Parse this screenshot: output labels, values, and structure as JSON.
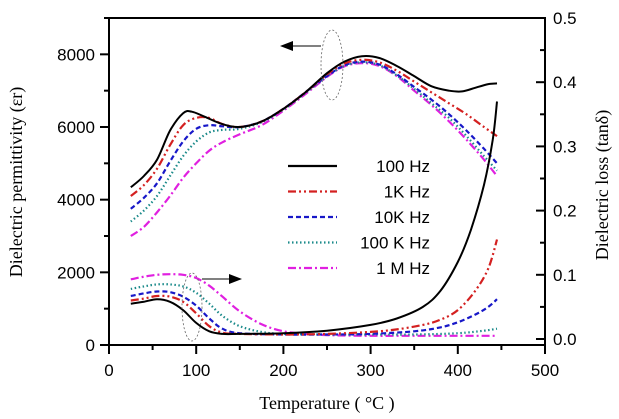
{
  "chart_data": {
    "type": "line",
    "title": "",
    "xlabel": "Temperature ( °C )",
    "ylabel_left": "Dielectric permittivity (εr)",
    "ylabel_right": "Dielectric loss (tanδ)",
    "xlim": [
      0,
      500
    ],
    "ylim_left": [
      0,
      9000
    ],
    "ylim_right": [
      0,
      0.5
    ],
    "x_ticks": [
      0,
      100,
      200,
      300,
      400,
      500
    ],
    "y_left_ticks": [
      0,
      2000,
      4000,
      6000,
      8000
    ],
    "y_right_ticks": [
      0.0,
      0.1,
      0.2,
      0.3,
      0.4,
      0.5
    ],
    "x_tick_labels": [
      "0",
      "100",
      "200",
      "300",
      "400",
      "500"
    ],
    "y_left_tick_labels": [
      "0",
      "2000",
      "4000",
      "6000",
      "8000"
    ],
    "y_right_tick_labels": [
      "0.0",
      "0.1",
      "0.2",
      "0.3",
      "0.4",
      "0.5"
    ],
    "grid": false,
    "legend_position": "center-right",
    "annotations": [
      {
        "type": "ellipse-arrow",
        "target_axis": "left",
        "direction": "left",
        "near_x": 255
      },
      {
        "type": "ellipse-arrow",
        "target_axis": "right",
        "direction": "right",
        "near_x": 95
      }
    ],
    "series": [
      {
        "name": "100 Hz",
        "color": "#000000",
        "style": "solid",
        "permittivity": {
          "x": [
            25,
            40,
            55,
            70,
            85,
            95,
            110,
            130,
            150,
            175,
            200,
            225,
            250,
            270,
            290,
            310,
            330,
            350,
            370,
            390,
            405,
            420,
            435,
            445
          ],
          "y": [
            4340,
            4650,
            5100,
            5900,
            6380,
            6420,
            6280,
            6080,
            6000,
            6150,
            6500,
            6950,
            7480,
            7800,
            7950,
            7900,
            7680,
            7400,
            7120,
            7000,
            6980,
            7080,
            7180,
            7200
          ]
        },
        "loss": {
          "x": [
            25,
            40,
            55,
            70,
            85,
            100,
            115,
            130,
            150,
            200,
            250,
            300,
            330,
            360,
            380,
            400,
            415,
            430,
            440,
            445
          ],
          "y": [
            0.055,
            0.058,
            0.062,
            0.058,
            0.045,
            0.025,
            0.012,
            0.008,
            0.008,
            0.009,
            0.013,
            0.022,
            0.032,
            0.05,
            0.075,
            0.12,
            0.17,
            0.24,
            0.31,
            0.37
          ]
        }
      },
      {
        "name": "1K Hz",
        "color": "#d42020",
        "style": "dashdotdot",
        "permittivity": {
          "x": [
            25,
            40,
            55,
            70,
            85,
            100,
            115,
            130,
            150,
            175,
            200,
            225,
            250,
            270,
            290,
            310,
            330,
            350,
            370,
            390,
            410,
            430,
            445
          ],
          "y": [
            4100,
            4400,
            4850,
            5500,
            6050,
            6250,
            6250,
            6080,
            6000,
            6150,
            6500,
            6950,
            7450,
            7750,
            7850,
            7780,
            7550,
            7250,
            6950,
            6650,
            6350,
            6000,
            5750
          ]
        },
        "loss": {
          "x": [
            25,
            40,
            55,
            70,
            85,
            100,
            115,
            130,
            150,
            200,
            250,
            300,
            330,
            360,
            380,
            400,
            420,
            435,
            445
          ],
          "y": [
            0.06,
            0.063,
            0.067,
            0.066,
            0.058,
            0.04,
            0.02,
            0.01,
            0.008,
            0.007,
            0.008,
            0.011,
            0.015,
            0.022,
            0.03,
            0.045,
            0.075,
            0.11,
            0.155
          ]
        }
      },
      {
        "name": "10K Hz",
        "color": "#1818c8",
        "style": "dashed",
        "permittivity": {
          "x": [
            25,
            40,
            55,
            70,
            85,
            100,
            115,
            130,
            150,
            175,
            200,
            225,
            250,
            270,
            290,
            310,
            330,
            350,
            370,
            390,
            410,
            430,
            445
          ],
          "y": [
            3750,
            4050,
            4450,
            5050,
            5600,
            5950,
            6050,
            6020,
            6000,
            6150,
            6500,
            6950,
            7400,
            7700,
            7800,
            7720,
            7450,
            7100,
            6750,
            6350,
            5900,
            5400,
            5000
          ]
        },
        "loss": {
          "x": [
            25,
            40,
            55,
            70,
            85,
            100,
            115,
            130,
            150,
            200,
            250,
            300,
            350,
            380,
            400,
            420,
            435,
            445
          ],
          "y": [
            0.067,
            0.071,
            0.074,
            0.073,
            0.066,
            0.052,
            0.032,
            0.016,
            0.009,
            0.007,
            0.007,
            0.008,
            0.012,
            0.018,
            0.026,
            0.038,
            0.05,
            0.062
          ]
        }
      },
      {
        "name": "100 K Hz",
        "color": "#1a8a8a",
        "style": "dotted",
        "permittivity": {
          "x": [
            25,
            40,
            55,
            70,
            85,
            100,
            115,
            130,
            150,
            175,
            200,
            225,
            250,
            270,
            290,
            310,
            330,
            350,
            370,
            390,
            410,
            430,
            445
          ],
          "y": [
            3400,
            3700,
            4100,
            4650,
            5200,
            5600,
            5850,
            5920,
            5950,
            6130,
            6480,
            6930,
            7400,
            7680,
            7780,
            7700,
            7420,
            7050,
            6650,
            6250,
            5750,
            5200,
            4800
          ]
        },
        "loss": {
          "x": [
            25,
            40,
            55,
            70,
            85,
            100,
            115,
            130,
            150,
            175,
            200,
            250,
            300,
            350,
            400,
            430,
            445
          ],
          "y": [
            0.078,
            0.082,
            0.085,
            0.085,
            0.082,
            0.072,
            0.055,
            0.036,
            0.02,
            0.011,
            0.008,
            0.007,
            0.007,
            0.007,
            0.009,
            0.013,
            0.016
          ]
        }
      },
      {
        "name": "1 M Hz",
        "color": "#e020e0",
        "style": "dashdot",
        "permittivity": {
          "x": [
            25,
            40,
            55,
            70,
            85,
            100,
            115,
            130,
            150,
            175,
            200,
            225,
            250,
            270,
            290,
            310,
            330,
            350,
            370,
            390,
            410,
            430,
            445
          ],
          "y": [
            3000,
            3250,
            3650,
            4100,
            4600,
            5000,
            5350,
            5580,
            5800,
            6050,
            6450,
            6900,
            7380,
            7670,
            7760,
            7680,
            7400,
            7000,
            6600,
            6150,
            5650,
            5100,
            4650
          ]
        },
        "loss": {
          "x": [
            25,
            40,
            55,
            70,
            85,
            100,
            115,
            130,
            150,
            175,
            200,
            225,
            250,
            300,
            350,
            400,
            445
          ],
          "y": [
            0.093,
            0.097,
            0.1,
            0.101,
            0.1,
            0.095,
            0.083,
            0.066,
            0.043,
            0.023,
            0.012,
            0.008,
            0.006,
            0.005,
            0.005,
            0.005,
            0.005
          ]
        }
      }
    ]
  }
}
